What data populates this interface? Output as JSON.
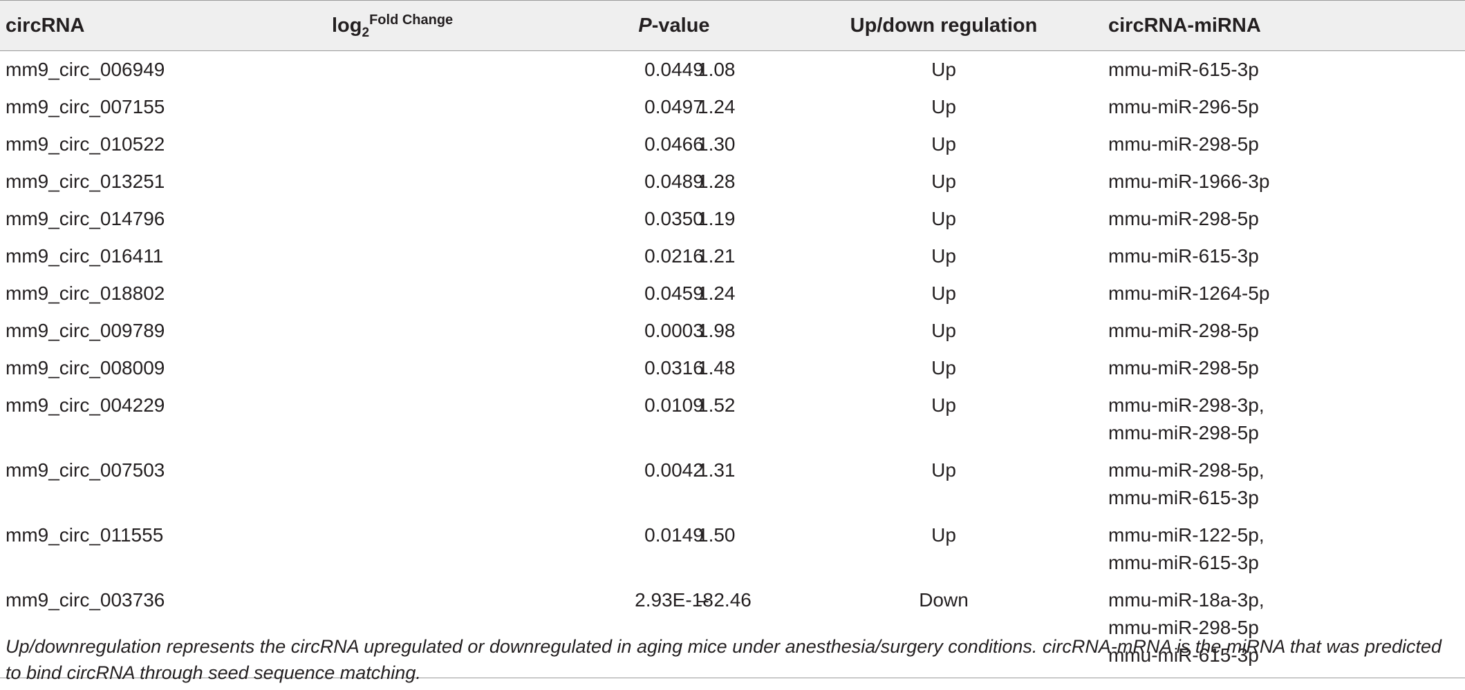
{
  "table": {
    "headers": {
      "circrna": "circRNA",
      "fold_base": "log",
      "fold_sub": "2",
      "fold_sup": "Fold Change",
      "p_italic": "P",
      "p_rest": "-value",
      "regulation": "Up/down regulation",
      "mirna": "circRNA-miRNA"
    },
    "rows": [
      {
        "circrna": "mm9_circ_006949",
        "fold": "1.08",
        "p": "0.0449",
        "reg": "Up",
        "mirna": [
          "mmu-miR-615-3p"
        ]
      },
      {
        "circrna": "mm9_circ_007155",
        "fold": "1.24",
        "p": "0.0497",
        "reg": "Up",
        "mirna": [
          "mmu-miR-296-5p"
        ]
      },
      {
        "circrna": "mm9_circ_010522",
        "fold": "1.30",
        "p": "0.0466",
        "reg": "Up",
        "mirna": [
          "mmu-miR-298-5p"
        ]
      },
      {
        "circrna": "mm9_circ_013251",
        "fold": "1.28",
        "p": "0.0489",
        "reg": "Up",
        "mirna": [
          "mmu-miR-1966-3p"
        ]
      },
      {
        "circrna": "mm9_circ_014796",
        "fold": "1.19",
        "p": "0.0350",
        "reg": "Up",
        "mirna": [
          "mmu-miR-298-5p"
        ]
      },
      {
        "circrna": "mm9_circ_016411",
        "fold": "1.21",
        "p": "0.0216",
        "reg": "Up",
        "mirna": [
          "mmu-miR-615-3p"
        ]
      },
      {
        "circrna": "mm9_circ_018802",
        "fold": "1.24",
        "p": "0.0459",
        "reg": "Up",
        "mirna": [
          "mmu-miR-1264-5p"
        ]
      },
      {
        "circrna": "mm9_circ_009789",
        "fold": "1.98",
        "p": "0.0003",
        "reg": "Up",
        "mirna": [
          "mmu-miR-298-5p"
        ]
      },
      {
        "circrna": "mm9_circ_008009",
        "fold": "1.48",
        "p": "0.0316",
        "reg": "Up",
        "mirna": [
          "mmu-miR-298-5p"
        ]
      },
      {
        "circrna": "mm9_circ_004229",
        "fold": "1.52",
        "p": "0.0109",
        "reg": "Up",
        "mirna": [
          "mmu-miR-298-3p,",
          "mmu-miR-298-5p"
        ]
      },
      {
        "circrna": "mm9_circ_007503",
        "fold": "1.31",
        "p": "0.0042",
        "reg": "Up",
        "mirna": [
          "mmu-miR-298-5p,",
          "mmu-miR-615-3p"
        ]
      },
      {
        "circrna": "mm9_circ_011555",
        "fold": "1.50",
        "p": "0.0149",
        "reg": "Up",
        "mirna": [
          "mmu-miR-122-5p,",
          "mmu-miR-615-3p"
        ]
      },
      {
        "circrna": "mm9_circ_003736",
        "fold": "– 2.46",
        "p": "2.93E-18",
        "reg": "Down",
        "mirna": [
          "mmu-miR-18a-3p,",
          "mmu-miR-298-5p",
          "mmu-miR-615-3p"
        ]
      }
    ]
  },
  "footnote": "Up/downregulation represents the circRNA upregulated or downregulated in aging mice under anesthesia/surgery conditions. circRNA-mRNA is the miRNA that was predicted to bind circRNA through seed sequence matching."
}
